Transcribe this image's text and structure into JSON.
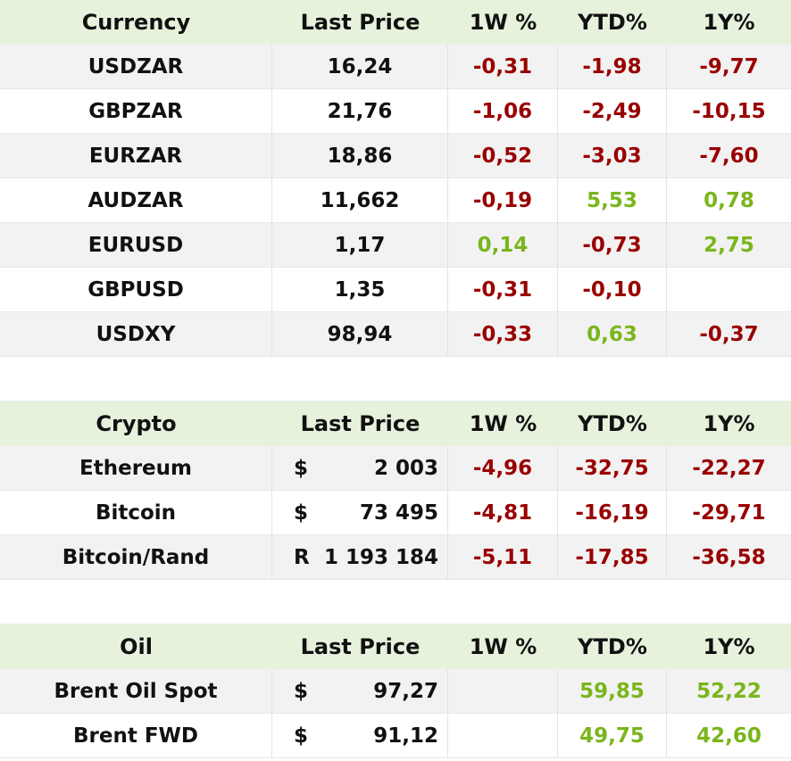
{
  "currency": {
    "headers": [
      "Currency",
      "Last Price",
      "1W %",
      "YTD%",
      "1Y%"
    ],
    "rows": [
      {
        "name": "USDZAR",
        "price": "16,24",
        "w1": "-0,31",
        "ytd": "-1,98",
        "y1": "-9,77"
      },
      {
        "name": "GBPZAR",
        "price": "21,76",
        "w1": "-1,06",
        "ytd": "-2,49",
        "y1": "-10,15"
      },
      {
        "name": "EURZAR",
        "price": "18,86",
        "w1": "-0,52",
        "ytd": "-3,03",
        "y1": "-7,60"
      },
      {
        "name": "AUDZAR",
        "price": "11,662",
        "w1": "-0,19",
        "ytd": "5,53",
        "y1": "0,78"
      },
      {
        "name": "EURUSD",
        "price": "1,17",
        "w1": "0,14",
        "ytd": "-0,73",
        "y1": "2,75"
      },
      {
        "name": "GBPUSD",
        "price": "1,35",
        "w1": "-0,31",
        "ytd": "-0,10",
        "y1": ""
      },
      {
        "name": "USDXY",
        "price": "98,94",
        "w1": "-0,33",
        "ytd": "0,63",
        "y1": "-0,37"
      }
    ]
  },
  "crypto": {
    "headers": [
      "Crypto",
      "Last Price",
      "1W %",
      "YTD%",
      "1Y%"
    ],
    "rows": [
      {
        "name": "Ethereum",
        "symbol": "$",
        "price": "2 003",
        "w1": "-4,96",
        "ytd": "-32,75",
        "y1": "-22,27"
      },
      {
        "name": "Bitcoin",
        "symbol": "$",
        "price": "73 495",
        "w1": "-4,81",
        "ytd": "-16,19",
        "y1": "-29,71"
      },
      {
        "name": "Bitcoin/Rand",
        "symbol": "R",
        "price": "1 193 184",
        "w1": "-5,11",
        "ytd": "-17,85",
        "y1": "-36,58"
      }
    ]
  },
  "oil": {
    "headers": [
      "Oil",
      "Last Price",
      "1W %",
      "YTD%",
      "1Y%"
    ],
    "rows": [
      {
        "name": "Brent Oil Spot",
        "symbol": "$",
        "price": "97,27",
        "w1": "",
        "ytd": "59,85",
        "y1": "52,22"
      },
      {
        "name": "Brent FWD",
        "symbol": "$",
        "price": "91,12",
        "w1": "",
        "ytd": "49,75",
        "y1": "42,60"
      }
    ]
  },
  "colors": {
    "header_bg": "#e6f2dc",
    "shade_bg": "#f2f2f2",
    "negative": "#990000",
    "positive": "#7ab51d"
  }
}
